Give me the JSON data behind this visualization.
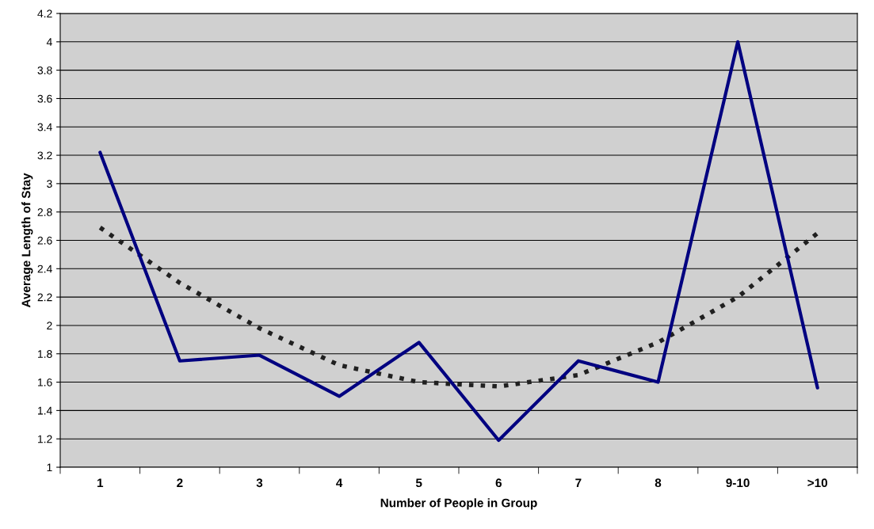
{
  "chart_data": {
    "type": "line",
    "xlabel": "Number of People in Group",
    "ylabel": "Average Length of Stay",
    "categories": [
      "1",
      "2",
      "3",
      "4",
      "5",
      "6",
      "7",
      "8",
      "9-10",
      ">10"
    ],
    "series": [
      {
        "color": "#000080",
        "values": [
          3.22,
          1.75,
          1.79,
          1.5,
          1.88,
          1.19,
          1.75,
          1.6,
          4.0,
          1.56
        ],
        "line_style": "solid"
      },
      {
        "type": "line",
        "color": "#202020",
        "values": [
          2.69,
          2.3,
          1.98,
          1.72,
          1.6,
          1.57,
          1.65,
          1.88,
          2.2,
          2.65
        ],
        "line_style": "dotted"
      }
    ],
    "ylim": [
      1,
      4.2
    ],
    "yticks": [
      1,
      1.2,
      1.4,
      1.6,
      1.8,
      2,
      2.2,
      2.4,
      2.6,
      2.8,
      3,
      3.2,
      3.4,
      3.6,
      3.8,
      4,
      4.2
    ],
    "grid": "y",
    "marker": "none"
  }
}
